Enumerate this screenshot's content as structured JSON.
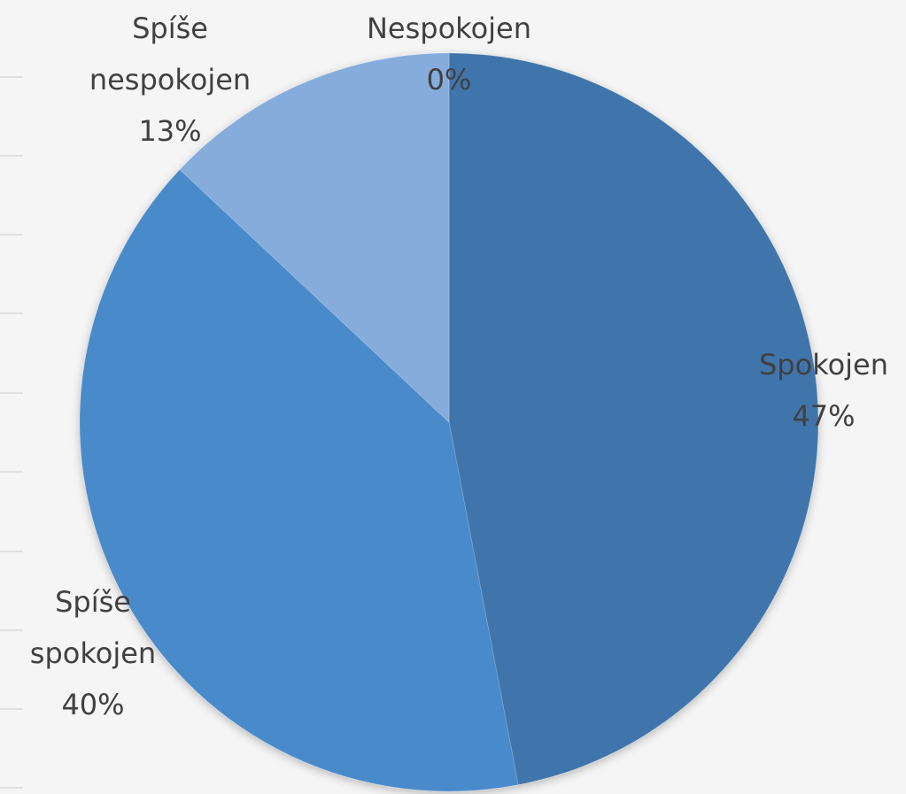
{
  "chart_data": {
    "type": "pie",
    "categories": [
      "Spokojen",
      "Spíše spokojen",
      "Spíše nespokojen",
      "Nespokojen"
    ],
    "values": [
      47,
      40,
      13,
      0
    ],
    "value_labels": [
      "47%",
      "40%",
      "13%",
      "0%"
    ],
    "colors": [
      "#3f75ab",
      "#4a8acb",
      "#86acdc",
      "#a9c4e8"
    ]
  }
}
